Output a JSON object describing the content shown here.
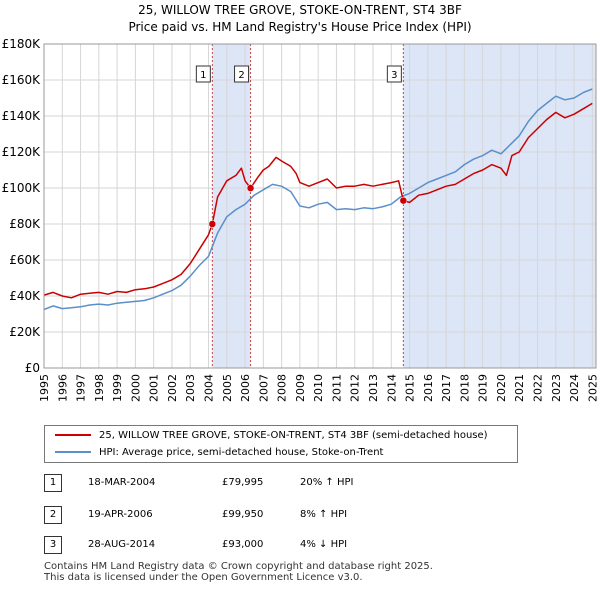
{
  "title": "25, WILLOW TREE GROVE, STOKE-ON-TRENT, ST4 3BF",
  "subtitle": "Price paid vs. HM Land Registry's House Price Index (HPI)",
  "colors": {
    "property": "#cc0000",
    "hpi": "#5b8fc9",
    "shade": "#dde6f7",
    "grid": "#d6d6d6",
    "marker_line": "#cc4444"
  },
  "chart_data": {
    "type": "line",
    "title": "25, WILLOW TREE GROVE, STOKE-ON-TRENT, ST4 3BF",
    "subtitle": "Price paid vs. HM Land Registry's House Price Index (HPI)",
    "xlim": [
      1995,
      2025.2
    ],
    "ylim": [
      0,
      180000
    ],
    "yticks": [
      0,
      20000,
      40000,
      60000,
      80000,
      100000,
      120000,
      140000,
      160000,
      180000
    ],
    "ytick_labels": [
      "£0",
      "£20K",
      "£40K",
      "£60K",
      "£80K",
      "£100K",
      "£120K",
      "£140K",
      "£160K",
      "£180K"
    ],
    "xticks": [
      1995,
      1996,
      1997,
      1998,
      1999,
      2000,
      2001,
      2002,
      2003,
      2004,
      2005,
      2006,
      2007,
      2008,
      2009,
      2010,
      2011,
      2012,
      2013,
      2014,
      2015,
      2016,
      2017,
      2018,
      2019,
      2020,
      2021,
      2022,
      2023,
      2024,
      2025
    ],
    "xtick_labels": [
      "1995",
      "1996",
      "1997",
      "1998",
      "1999",
      "2000",
      "2001",
      "2002",
      "2003",
      "2004",
      "2005",
      "2006",
      "2007",
      "2008",
      "2009",
      "2010",
      "2011",
      "2012",
      "2013",
      "2014",
      "2015",
      "2016",
      "2017",
      "2018",
      "2019",
      "2020",
      "2021",
      "2022",
      "2023",
      "2024",
      "2025"
    ],
    "grid": true,
    "series": [
      {
        "name": "25, WILLOW TREE GROVE, STOKE-ON-TRENT, ST4 3BF (semi-detached house)",
        "color": "#cc0000",
        "points": [
          [
            1995.0,
            40500
          ],
          [
            1995.5,
            42000
          ],
          [
            1996.0,
            40000
          ],
          [
            1996.5,
            39000
          ],
          [
            1997.0,
            41000
          ],
          [
            1997.5,
            41500
          ],
          [
            1998.0,
            42000
          ],
          [
            1998.5,
            41000
          ],
          [
            1999.0,
            42500
          ],
          [
            1999.5,
            42000
          ],
          [
            2000.0,
            43500
          ],
          [
            2000.5,
            44000
          ],
          [
            2001.0,
            45000
          ],
          [
            2001.5,
            47000
          ],
          [
            2002.0,
            49000
          ],
          [
            2002.5,
            52000
          ],
          [
            2003.0,
            58000
          ],
          [
            2003.5,
            66000
          ],
          [
            2004.0,
            74000
          ],
          [
            2004.21,
            79995
          ],
          [
            2004.5,
            95000
          ],
          [
            2005.0,
            104000
          ],
          [
            2005.5,
            107000
          ],
          [
            2005.8,
            111000
          ],
          [
            2006.0,
            104000
          ],
          [
            2006.3,
            99950
          ],
          [
            2006.7,
            106000
          ],
          [
            2007.0,
            110000
          ],
          [
            2007.3,
            112000
          ],
          [
            2007.7,
            117000
          ],
          [
            2008.0,
            115000
          ],
          [
            2008.5,
            112000
          ],
          [
            2008.8,
            108000
          ],
          [
            2009.0,
            103000
          ],
          [
            2009.5,
            101000
          ],
          [
            2010.0,
            103000
          ],
          [
            2010.5,
            105000
          ],
          [
            2011.0,
            100000
          ],
          [
            2011.5,
            101000
          ],
          [
            2012.0,
            101000
          ],
          [
            2012.5,
            102000
          ],
          [
            2013.0,
            101000
          ],
          [
            2013.5,
            102000
          ],
          [
            2014.0,
            103000
          ],
          [
            2014.4,
            104000
          ],
          [
            2014.66,
            93000
          ],
          [
            2015.0,
            92000
          ],
          [
            2015.5,
            96000
          ],
          [
            2016.0,
            97000
          ],
          [
            2016.5,
            99000
          ],
          [
            2017.0,
            101000
          ],
          [
            2017.5,
            102000
          ],
          [
            2018.0,
            105000
          ],
          [
            2018.5,
            108000
          ],
          [
            2019.0,
            110000
          ],
          [
            2019.5,
            113000
          ],
          [
            2020.0,
            111000
          ],
          [
            2020.3,
            107000
          ],
          [
            2020.6,
            118000
          ],
          [
            2021.0,
            120000
          ],
          [
            2021.5,
            128000
          ],
          [
            2022.0,
            133000
          ],
          [
            2022.5,
            138000
          ],
          [
            2023.0,
            142000
          ],
          [
            2023.5,
            139000
          ],
          [
            2024.0,
            141000
          ],
          [
            2024.5,
            144000
          ],
          [
            2025.0,
            147000
          ]
        ]
      },
      {
        "name": "HPI: Average price, semi-detached house, Stoke-on-Trent",
        "color": "#5b8fc9",
        "points": [
          [
            1995.0,
            32500
          ],
          [
            1995.5,
            34500
          ],
          [
            1996.0,
            33000
          ],
          [
            1996.5,
            33500
          ],
          [
            1997.0,
            34000
          ],
          [
            1997.5,
            35000
          ],
          [
            1998.0,
            35500
          ],
          [
            1998.5,
            35000
          ],
          [
            1999.0,
            36000
          ],
          [
            1999.5,
            36500
          ],
          [
            2000.0,
            37000
          ],
          [
            2000.5,
            37500
          ],
          [
            2001.0,
            39000
          ],
          [
            2001.5,
            41000
          ],
          [
            2002.0,
            43000
          ],
          [
            2002.5,
            46000
          ],
          [
            2003.0,
            51000
          ],
          [
            2003.5,
            57000
          ],
          [
            2004.0,
            62000
          ],
          [
            2004.5,
            75000
          ],
          [
            2005.0,
            84000
          ],
          [
            2005.5,
            88000
          ],
          [
            2006.0,
            91000
          ],
          [
            2006.5,
            96000
          ],
          [
            2007.0,
            99000
          ],
          [
            2007.5,
            102000
          ],
          [
            2008.0,
            101000
          ],
          [
            2008.5,
            98000
          ],
          [
            2009.0,
            90000
          ],
          [
            2009.5,
            89000
          ],
          [
            2010.0,
            91000
          ],
          [
            2010.5,
            92000
          ],
          [
            2011.0,
            88000
          ],
          [
            2011.5,
            88500
          ],
          [
            2012.0,
            88000
          ],
          [
            2012.5,
            89000
          ],
          [
            2013.0,
            88500
          ],
          [
            2013.5,
            89500
          ],
          [
            2014.0,
            91000
          ],
          [
            2014.5,
            95000
          ],
          [
            2015.0,
            97000
          ],
          [
            2015.5,
            100000
          ],
          [
            2016.0,
            103000
          ],
          [
            2016.5,
            105000
          ],
          [
            2017.0,
            107000
          ],
          [
            2017.5,
            109000
          ],
          [
            2018.0,
            113000
          ],
          [
            2018.5,
            116000
          ],
          [
            2019.0,
            118000
          ],
          [
            2019.5,
            121000
          ],
          [
            2020.0,
            119000
          ],
          [
            2020.5,
            124000
          ],
          [
            2021.0,
            129000
          ],
          [
            2021.5,
            137000
          ],
          [
            2022.0,
            143000
          ],
          [
            2022.5,
            147000
          ],
          [
            2023.0,
            151000
          ],
          [
            2023.5,
            149000
          ],
          [
            2024.0,
            150000
          ],
          [
            2024.5,
            153000
          ],
          [
            2025.0,
            155000
          ]
        ]
      }
    ],
    "shaded_ranges": [
      [
        2004.21,
        2006.3
      ],
      [
        2014.66,
        2025.2
      ]
    ],
    "transactions": [
      {
        "label": "1",
        "x": 2004.21,
        "y": 79995
      },
      {
        "label": "2",
        "x": 2006.3,
        "y": 99950
      },
      {
        "label": "3",
        "x": 2014.66,
        "y": 93000
      }
    ]
  },
  "legend": {
    "property_label": "25, WILLOW TREE GROVE, STOKE-ON-TRENT, ST4 3BF (semi-detached house)",
    "hpi_label": "HPI: Average price, semi-detached house, Stoke-on-Trent"
  },
  "table": [
    {
      "num": "1",
      "date": "18-MAR-2004",
      "price": "£79,995",
      "hpi": "20% ↑ HPI"
    },
    {
      "num": "2",
      "date": "19-APR-2006",
      "price": "£99,950",
      "hpi": "8% ↑ HPI"
    },
    {
      "num": "3",
      "date": "28-AUG-2014",
      "price": "£93,000",
      "hpi": "4% ↓ HPI"
    }
  ],
  "footer": {
    "line1": "Contains HM Land Registry data © Crown copyright and database right 2025.",
    "line2": "This data is licensed under the Open Government Licence v3.0."
  }
}
